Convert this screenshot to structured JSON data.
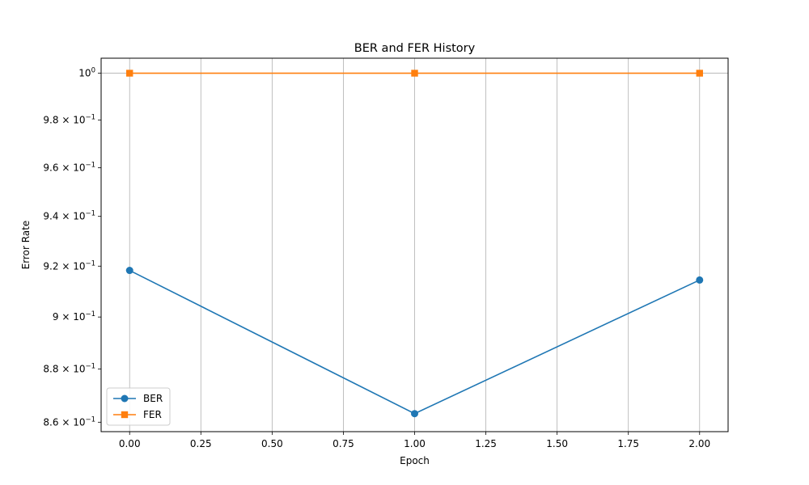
{
  "chart_data": {
    "type": "line",
    "title": "BER and FER History",
    "xlabel": "Epoch",
    "ylabel": "Error Rate",
    "yscale": "log",
    "grid": "x-major",
    "legend_position": "lower-left",
    "xlim": [
      -0.1,
      2.1
    ],
    "ylim": [
      0.8565,
      1.0065
    ],
    "x_ticks": [
      0.0,
      0.25,
      0.5,
      0.75,
      1.0,
      1.25,
      1.5,
      1.75,
      2.0
    ],
    "x_tick_labels": [
      "0.00",
      "0.25",
      "0.50",
      "0.75",
      "1.00",
      "1.25",
      "1.50",
      "1.75",
      "2.00"
    ],
    "y_ticks": [
      {
        "value": 1.0,
        "mantissa": "10",
        "exponent": "0",
        "prefix": ""
      },
      {
        "value": 0.98,
        "mantissa": "10",
        "exponent": "−1",
        "prefix": "9.8 × "
      },
      {
        "value": 0.96,
        "mantissa": "10",
        "exponent": "−1",
        "prefix": "9.6 × "
      },
      {
        "value": 0.94,
        "mantissa": "10",
        "exponent": "−1",
        "prefix": "9.4 × "
      },
      {
        "value": 0.92,
        "mantissa": "10",
        "exponent": "−1",
        "prefix": "9.2 × "
      },
      {
        "value": 0.9,
        "mantissa": "10",
        "exponent": "−1",
        "prefix": "9 × "
      },
      {
        "value": 0.88,
        "mantissa": "10",
        "exponent": "−1",
        "prefix": "8.8 × "
      },
      {
        "value": 0.86,
        "mantissa": "10",
        "exponent": "−1",
        "prefix": "8.6 × "
      }
    ],
    "x": [
      0,
      1,
      2
    ],
    "series": [
      {
        "name": "BER",
        "values": [
          0.9183,
          0.8632,
          0.9145
        ],
        "color": "#1f77b4",
        "marker": "circle"
      },
      {
        "name": "FER",
        "values": [
          1.0,
          1.0,
          1.0
        ],
        "color": "#ff7f0e",
        "marker": "square"
      }
    ]
  }
}
